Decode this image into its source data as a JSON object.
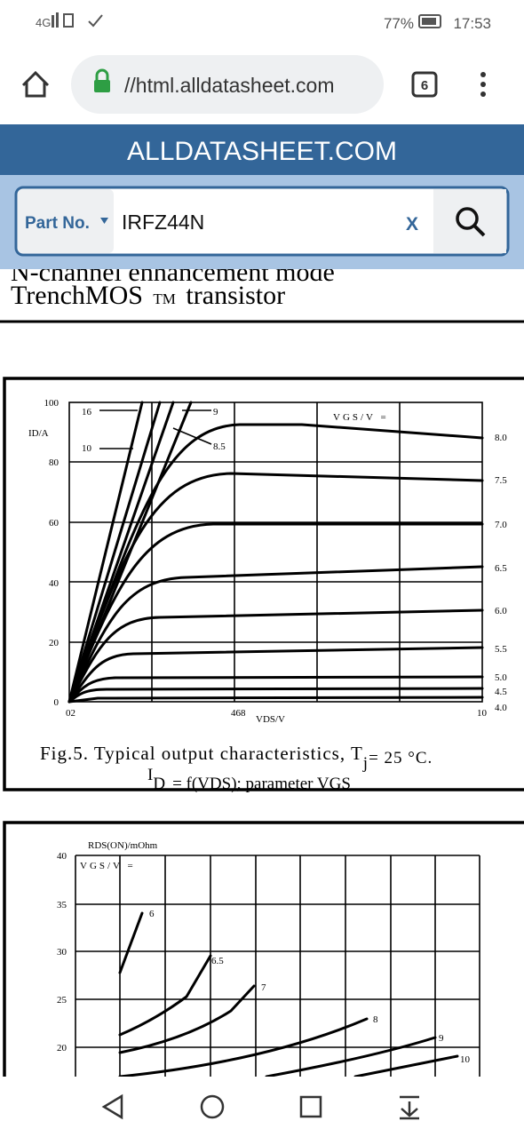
{
  "status_bar": {
    "network": "4G",
    "battery": "77%",
    "time": "17:53"
  },
  "browser": {
    "url": "//html.alldatasheet.com",
    "tab_count": "6"
  },
  "site": {
    "title": "ALLDATASHEET.COM",
    "search_label": "Part No.",
    "search_query": "IRFZ44N",
    "clear": "X"
  },
  "document": {
    "heading_cut": "N-channel enhancement mode",
    "heading": "TrenchMOS",
    "heading_mark": "TM",
    "heading_end": "transistor",
    "fig5": {
      "y_label": "ID/A",
      "x_label": "VDS/V",
      "yticks": [
        "100",
        "80",
        "60",
        "40",
        "20",
        "0"
      ],
      "xticks": [
        "02",
        "468",
        "10"
      ],
      "legend_title": "VGS/V =",
      "curve_labels_top": [
        "16",
        "10",
        "9",
        "8.5"
      ],
      "curve_labels_right": [
        "8.0",
        "7.5",
        "7.0",
        "6.5",
        "6.0",
        "5.5",
        "5.0",
        "4.5",
        "4.0"
      ],
      "caption_1": "Fig.5. Typical output characteristics, T",
      "caption_1_sub": "j",
      "caption_1_end": "= 25 °C.",
      "caption_2": "I",
      "caption_2_sub": "D",
      "caption_2_end": "= f(VDS); parameter VGS"
    },
    "fig6": {
      "y_label": "RDS(ON)/mOhm",
      "legend_title": "VGS/V =",
      "yticks": [
        "40",
        "35",
        "30",
        "25",
        "20"
      ],
      "curve_labels": [
        "6",
        "6.5",
        "7",
        "8",
        "9",
        "10"
      ]
    }
  }
}
